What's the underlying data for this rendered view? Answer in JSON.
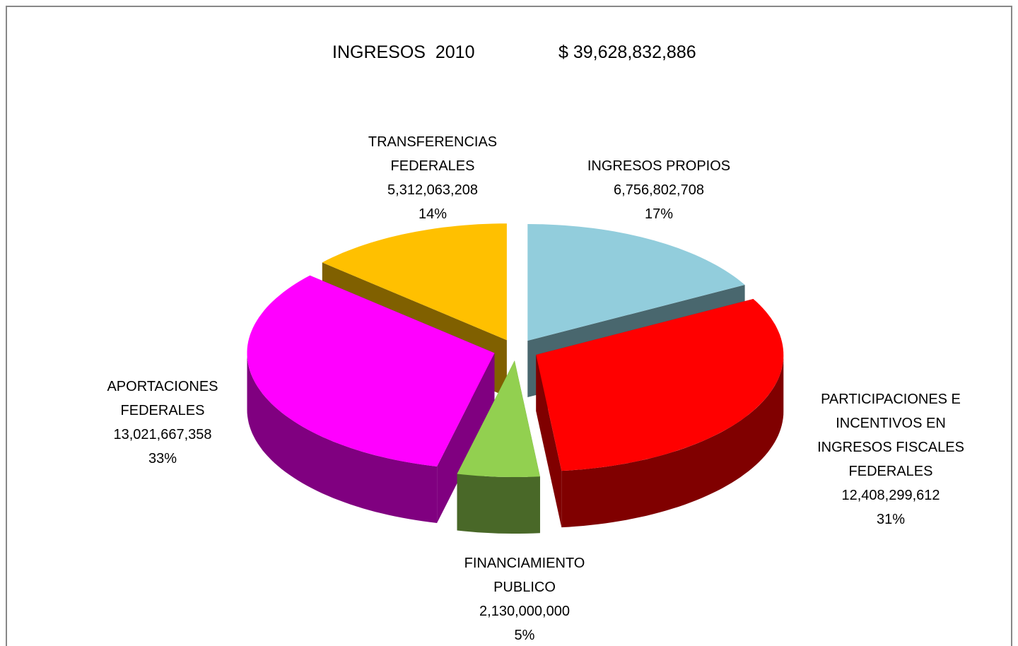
{
  "chart_data": {
    "type": "pie3d",
    "title": "INGRESOS  2010",
    "subtitle": "$ 39,628,832,886",
    "categories": [
      "INGRESOS PROPIOS",
      "PARTICIPACIONES E INCENTIVOS EN INGRESOS FISCALES FEDERALES",
      "FINANCIAMIENTO PUBLICO",
      "APORTACIONES FEDERALES",
      "TRANSFERENCIAS FEDERALES"
    ],
    "values": [
      6756802708,
      12408299612,
      2130000000,
      13021667358,
      5312063208
    ],
    "value_labels": [
      "6,756,802,708",
      "12,408,299,612",
      "2,130,000,000",
      "13,021,667,358",
      "5,312,063,208"
    ],
    "percent_labels": [
      "17%",
      "31%",
      "5%",
      "33%",
      "14%"
    ],
    "colors": [
      "#92cddc",
      "#ff0000",
      "#92d050",
      "#ff00ff",
      "#ffc000"
    ]
  }
}
